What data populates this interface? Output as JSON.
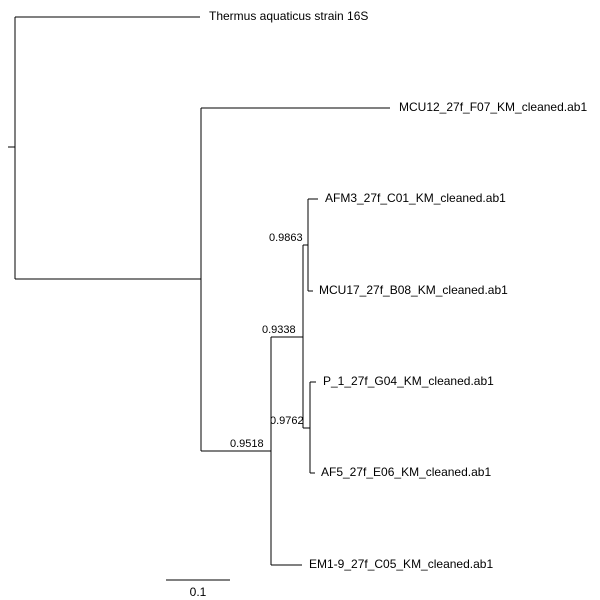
{
  "tree": {
    "leaves": [
      {
        "id": "thermus",
        "label": "Thermus aquaticus strain 16S"
      },
      {
        "id": "mcu12",
        "label": "MCU12_27f_F07_KM_cleaned.ab1"
      },
      {
        "id": "afm3",
        "label": "AFM3_27f_C01_KM_cleaned.ab1"
      },
      {
        "id": "mcu17",
        "label": "MCU17_27f_B08_KM_cleaned.ab1"
      },
      {
        "id": "p1",
        "label": "P_1_27f_G04_KM_cleaned.ab1"
      },
      {
        "id": "af5",
        "label": "AF5_27f_E06_KM_cleaned.ab1"
      },
      {
        "id": "em1",
        "label": "EM1-9_27f_C05_KM_cleaned.ab1"
      }
    ],
    "support_values": {
      "n_afm3_mcu17": "0.9863",
      "n_p1_af5": "0.9762",
      "n_four": "0.9338",
      "n_five": "0.9518"
    },
    "scale_bar": {
      "label": "0.1"
    }
  }
}
